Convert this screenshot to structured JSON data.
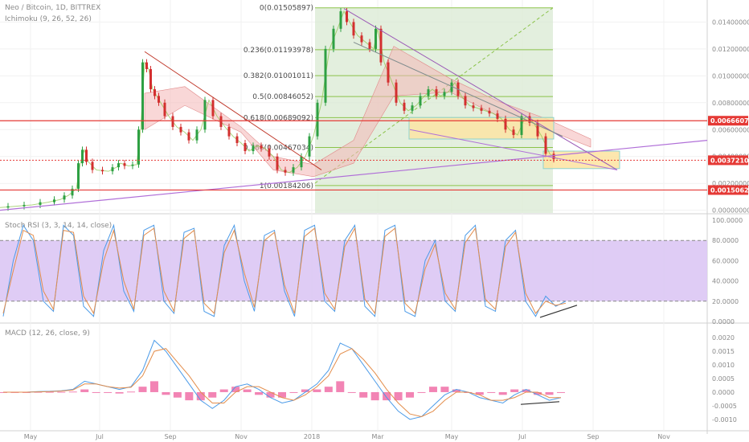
{
  "header": {
    "title": "Neo / Bitcoin, 1D, BITTREX",
    "indicator": "Ichimoku (9, 26, 52, 26)"
  },
  "stoch_legend": "Stoch RSI (3, 3, 14, 14, close)",
  "macd_legend": "MACD (12, 26, close, 9)",
  "colors": {
    "candle_up": "#2ea043",
    "candle_down": "#d32f2f",
    "fib_box": "#d9ead3",
    "fib_line": "#8bc34a",
    "support_red": "#e53935",
    "trend_purple": "#b06fd8",
    "stoch_zone": "#dcc6f4",
    "stoch_k": "#4c9be8",
    "stoch_d": "#e38d4b",
    "macd_line": "#4c9be8",
    "macd_signal": "#e38d4b",
    "macd_hist": "#f06fa7",
    "target_zone": "#fde3a0"
  },
  "chart_data": [
    {
      "type": "candlestick",
      "title": "Neo / Bitcoin, 1D, BITTREX",
      "x_labels": [
        "May",
        "Jul",
        "Sep",
        "Nov",
        "2018",
        "Mar",
        "May",
        "Jul",
        "Sep",
        "Nov"
      ],
      "y_ticks": [
        "0.01400000",
        "0.01200000",
        "0.01000000",
        "0.00800000",
        "0.00600000",
        "0.00400000",
        "0.00200000",
        "0.00000000"
      ],
      "ylim": [
        -0.0002,
        0.0154
      ],
      "price_tags": [
        {
          "label": "0.00666071",
          "value": 0.00666071
        },
        {
          "label": "0.00372104",
          "value": 0.00372104
        },
        {
          "label": "0.00150629",
          "value": 0.00150629
        }
      ],
      "fib_levels": [
        {
          "label": "0(0.01505897)",
          "value": 0.01505897
        },
        {
          "label": "0.236(0.01193978)",
          "value": 0.01193978
        },
        {
          "label": "0.382(0.01001011)",
          "value": 0.01001011
        },
        {
          "label": "0.5(0.00846052)",
          "value": 0.00846052
        },
        {
          "label": "0.618(0.00689092)",
          "value": 0.00689092
        },
        {
          "label": "0.786(0.00467034)",
          "value": 0.00467034
        },
        {
          "label": "1(0.00184206)",
          "value": 0.00184206
        }
      ],
      "price_path": [
        [
          0,
          0.0002
        ],
        [
          20,
          0.0003
        ],
        [
          40,
          0.0004
        ],
        [
          60,
          0.0006
        ],
        [
          75,
          0.0008
        ],
        [
          85,
          0.0011
        ],
        [
          95,
          0.0016
        ],
        [
          100,
          0.0035
        ],
        [
          105,
          0.0045
        ],
        [
          110,
          0.0036
        ],
        [
          120,
          0.003
        ],
        [
          135,
          0.0029
        ],
        [
          145,
          0.0032
        ],
        [
          150,
          0.0035
        ],
        [
          160,
          0.0033
        ],
        [
          170,
          0.0034
        ],
        [
          175,
          0.006
        ],
        [
          180,
          0.011
        ],
        [
          185,
          0.0105
        ],
        [
          190,
          0.009
        ],
        [
          195,
          0.0085
        ],
        [
          200,
          0.008
        ],
        [
          210,
          0.007
        ],
        [
          220,
          0.0062
        ],
        [
          230,
          0.0058
        ],
        [
          240,
          0.0052
        ],
        [
          250,
          0.006
        ],
        [
          260,
          0.0082
        ],
        [
          270,
          0.007
        ],
        [
          280,
          0.0062
        ],
        [
          290,
          0.0055
        ],
        [
          300,
          0.005
        ],
        [
          310,
          0.0044
        ],
        [
          320,
          0.0048
        ],
        [
          330,
          0.0046
        ],
        [
          340,
          0.004
        ],
        [
          350,
          0.003
        ],
        [
          360,
          0.0028
        ],
        [
          370,
          0.0032
        ],
        [
          380,
          0.004
        ],
        [
          390,
          0.0055
        ],
        [
          400,
          0.008
        ],
        [
          410,
          0.012
        ],
        [
          420,
          0.0135
        ],
        [
          428,
          0.0148
        ],
        [
          435,
          0.014
        ],
        [
          445,
          0.013
        ],
        [
          455,
          0.0125
        ],
        [
          465,
          0.012
        ],
        [
          470,
          0.0135
        ],
        [
          478,
          0.011
        ],
        [
          488,
          0.0095
        ],
        [
          498,
          0.008
        ],
        [
          508,
          0.0074
        ],
        [
          518,
          0.0078
        ],
        [
          528,
          0.0085
        ],
        [
          538,
          0.009
        ],
        [
          548,
          0.0085
        ],
        [
          558,
          0.0088
        ],
        [
          566,
          0.0095
        ],
        [
          574,
          0.0085
        ],
        [
          584,
          0.0078
        ],
        [
          594,
          0.0076
        ],
        [
          604,
          0.0074
        ],
        [
          614,
          0.0072
        ],
        [
          624,
          0.0068
        ],
        [
          634,
          0.006
        ],
        [
          644,
          0.0056
        ],
        [
          654,
          0.007
        ],
        [
          664,
          0.0065
        ],
        [
          674,
          0.0055
        ],
        [
          684,
          0.0042
        ],
        [
          694,
          0.0038
        ]
      ],
      "annotations": [
        "descending trendline from Aug 2017 high",
        "descending trendline from Jan 2018 high",
        "rising support trendline",
        "yellow target zone near 0.0038"
      ]
    },
    {
      "type": "line",
      "title": "Stoch RSI (3, 3, 14, 14, close)",
      "y_ticks": [
        "100.0000",
        "80.0000",
        "60.0000",
        "40.0000",
        "20.0000",
        "0.0000"
      ],
      "ylim": [
        0,
        100
      ],
      "band": [
        20,
        80
      ],
      "series": [
        {
          "name": "K",
          "values": [
            5,
            60,
            95,
            80,
            20,
            10,
            95,
            85,
            15,
            5,
            70,
            95,
            30,
            10,
            90,
            95,
            20,
            8,
            88,
            92,
            10,
            5,
            75,
            95,
            40,
            10,
            85,
            90,
            30,
            5,
            90,
            95,
            20,
            10,
            80,
            95,
            15,
            5,
            90,
            95,
            10,
            5,
            60,
            80,
            20,
            10,
            85,
            95,
            15,
            10,
            80,
            90,
            20,
            5,
            25,
            15,
            20
          ]
        },
        {
          "name": "D",
          "values": [
            8,
            50,
            90,
            85,
            30,
            12,
            90,
            88,
            25,
            8,
            60,
            90,
            40,
            12,
            85,
            92,
            30,
            10,
            82,
            90,
            18,
            8,
            68,
            90,
            48,
            14,
            80,
            88,
            36,
            8,
            84,
            92,
            28,
            12,
            74,
            92,
            22,
            8,
            84,
            92,
            18,
            8,
            52,
            76,
            28,
            12,
            78,
            92,
            22,
            12,
            74,
            88,
            28,
            8,
            20,
            16,
            18
          ]
        }
      ]
    },
    {
      "type": "line",
      "title": "MACD (12, 26, close, 9)",
      "y_ticks": [
        "0.0020",
        "0.0015",
        "0.0010",
        "0.0005",
        "0.0000",
        "-0.0005",
        "-0.0010"
      ],
      "ylim": [
        -0.0013,
        0.0023
      ],
      "series": [
        {
          "name": "MACD",
          "values": [
            0,
            0,
            0,
            2e-05,
            3e-05,
            5e-05,
            0.0001,
            0.0004,
            0.0003,
            0.0002,
            0.0001,
            0.0002,
            0.0008,
            0.0019,
            0.0015,
            0.0009,
            0.0003,
            -0.0003,
            -0.0006,
            -0.0003,
            0.0002,
            0.0003,
            0.0001,
            -0.0002,
            -0.0004,
            -0.0003,
            0.0,
            0.0003,
            0.0008,
            0.0018,
            0.0016,
            0.001,
            0.0004,
            -0.0002,
            -0.0007,
            -0.001,
            -0.0009,
            -0.0005,
            -0.0001,
            0.0001,
            0.0,
            -0.0002,
            -0.0003,
            -0.0004,
            -0.0001,
            0.0001,
            -0.0001,
            -0.0003,
            -0.0002
          ]
        },
        {
          "name": "Signal",
          "values": [
            0,
            0,
            0,
            1e-05,
            2e-05,
            4e-05,
            8e-05,
            0.0003,
            0.0003,
            0.0002,
            0.00015,
            0.00018,
            0.0006,
            0.0015,
            0.0016,
            0.0011,
            0.0006,
            0.0,
            -0.0004,
            -0.0004,
            0.0,
            0.0002,
            0.0002,
            0.0,
            -0.0002,
            -0.0003,
            -0.0001,
            0.0002,
            0.0006,
            0.0014,
            0.0016,
            0.0012,
            0.0007,
            0.0001,
            -0.0004,
            -0.0008,
            -0.0009,
            -0.0007,
            -0.0003,
            0.0,
            0.0,
            -0.0001,
            -0.0003,
            -0.0003,
            -0.0002,
            0.0,
            0.0,
            -0.0002,
            -0.0002
          ]
        }
      ]
    }
  ]
}
